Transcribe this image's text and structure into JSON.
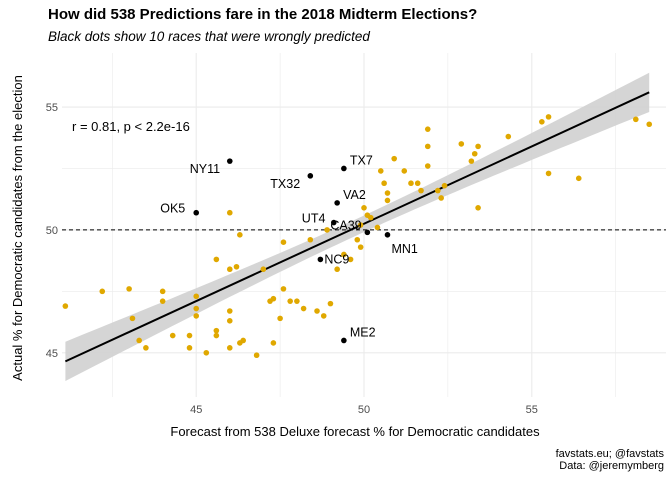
{
  "header": {
    "title": "How did 538 Predictions fare in the 2018 Midterm Elections?",
    "subtitle": "Black dots show 10 races that were wrongly predicted"
  },
  "caption": {
    "line1": "favstats.eu; @favstats",
    "line2": "Data: @jeremymberg"
  },
  "colors": {
    "correct": "#E0A800",
    "wrong": "#000000",
    "fit_line": "#000000",
    "ribbon": "#d3d3d3",
    "grid": "#ebebeb"
  },
  "chart_data": {
    "type": "scatter",
    "title": "How did 538 Predictions fare in the 2018 Midterm Elections?",
    "subtitle": "Black dots show 10 races that were wrongly predicted",
    "xlabel": "Forecast from 538 Deluxe forecast % for Democratic candidates",
    "ylabel": "Actual % for Democratic candidates from the election",
    "xlim": [
      41,
      59
    ],
    "ylim": [
      43.2,
      57.2
    ],
    "x_ticks": [
      45,
      50,
      55
    ],
    "y_ticks": [
      45,
      50,
      55
    ],
    "grid": true,
    "reference_line": {
      "y": 50,
      "style": "dashed"
    },
    "annotation": "r = 0.81, p < 2.2e-16",
    "fit": {
      "method": "linear",
      "x": [
        41.1,
        58.5
      ],
      "y": [
        44.65,
        55.6
      ],
      "ci_low": [
        43.9,
        54.8
      ],
      "ci_high": [
        45.4,
        56.5
      ]
    },
    "series": [
      {
        "color": "#E0A800",
        "points": [
          [
            41.1,
            46.9
          ],
          [
            42.2,
            47.5
          ],
          [
            43.0,
            47.6
          ],
          [
            43.1,
            46.4
          ],
          [
            43.3,
            45.5
          ],
          [
            43.5,
            45.2
          ],
          [
            44.0,
            47.1
          ],
          [
            44.0,
            47.5
          ],
          [
            44.3,
            45.7
          ],
          [
            44.8,
            45.7
          ],
          [
            44.8,
            45.2
          ],
          [
            45.0,
            47.3
          ],
          [
            45.0,
            46.8
          ],
          [
            45.0,
            46.5
          ],
          [
            45.3,
            45.0
          ],
          [
            45.6,
            45.7
          ],
          [
            45.6,
            45.9
          ],
          [
            45.6,
            48.8
          ],
          [
            46.0,
            45.2
          ],
          [
            46.0,
            46.7
          ],
          [
            46.0,
            46.3
          ],
          [
            46.0,
            48.4
          ],
          [
            46.0,
            50.7
          ],
          [
            46.2,
            48.5
          ],
          [
            46.3,
            45.4
          ],
          [
            46.4,
            45.5
          ],
          [
            46.3,
            49.8
          ],
          [
            46.8,
            44.9
          ],
          [
            47.0,
            48.4
          ],
          [
            47.2,
            47.1
          ],
          [
            47.3,
            47.2
          ],
          [
            47.3,
            45.4
          ],
          [
            47.5,
            46.4
          ],
          [
            47.6,
            49.5
          ],
          [
            47.6,
            47.6
          ],
          [
            47.8,
            47.1
          ],
          [
            48.0,
            47.1
          ],
          [
            48.2,
            46.8
          ],
          [
            48.4,
            49.6
          ],
          [
            48.6,
            46.7
          ],
          [
            48.8,
            46.5
          ],
          [
            48.9,
            50.0
          ],
          [
            49.0,
            47.0
          ],
          [
            49.2,
            48.4
          ],
          [
            49.4,
            49.0
          ],
          [
            49.6,
            48.8
          ],
          [
            49.8,
            49.6
          ],
          [
            49.9,
            49.3
          ],
          [
            49.9,
            50.2
          ],
          [
            50.0,
            50.9
          ],
          [
            50.1,
            50.6
          ],
          [
            50.2,
            50.5
          ],
          [
            50.4,
            50.1
          ],
          [
            50.5,
            52.4
          ],
          [
            50.6,
            51.9
          ],
          [
            50.7,
            51.5
          ],
          [
            50.7,
            51.2
          ],
          [
            50.9,
            52.9
          ],
          [
            51.2,
            52.4
          ],
          [
            51.4,
            51.9
          ],
          [
            51.6,
            51.9
          ],
          [
            51.7,
            51.6
          ],
          [
            51.9,
            52.6
          ],
          [
            51.9,
            53.4
          ],
          [
            51.9,
            54.1
          ],
          [
            52.2,
            51.6
          ],
          [
            52.3,
            51.3
          ],
          [
            52.4,
            51.8
          ],
          [
            52.9,
            53.5
          ],
          [
            53.2,
            52.8
          ],
          [
            53.3,
            53.1
          ],
          [
            53.4,
            53.4
          ],
          [
            53.4,
            50.9
          ],
          [
            54.3,
            53.8
          ],
          [
            55.3,
            54.4
          ],
          [
            55.5,
            54.6
          ],
          [
            55.5,
            52.3
          ],
          [
            56.4,
            52.1
          ],
          [
            58.1,
            54.5
          ],
          [
            58.5,
            54.3
          ]
        ]
      },
      {
        "color": "#000000",
        "points": [
          {
            "x": 45.0,
            "y": 50.7,
            "label": "OK5"
          },
          {
            "x": 46.0,
            "y": 52.8,
            "label": "NY11"
          },
          {
            "x": 48.4,
            "y": 52.2,
            "label": "TX32"
          },
          {
            "x": 48.7,
            "y": 48.8,
            "label": "NC9"
          },
          {
            "x": 49.2,
            "y": 51.1,
            "label": "VA2"
          },
          {
            "x": 49.4,
            "y": 52.5,
            "label": "TX7"
          },
          {
            "x": 49.4,
            "y": 45.5,
            "label": "ME2"
          },
          {
            "x": 49.1,
            "y": 50.3,
            "label": "UT4"
          },
          {
            "x": 50.1,
            "y": 49.9,
            "label": "CA39"
          },
          {
            "x": 50.7,
            "y": 49.8,
            "label": "MN1"
          }
        ]
      }
    ]
  }
}
